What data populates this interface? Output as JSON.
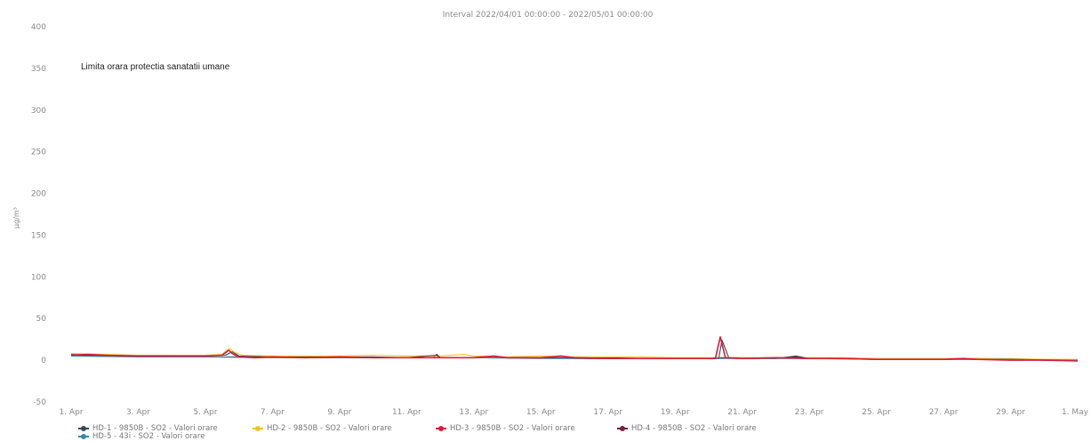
{
  "chart_data": {
    "type": "line",
    "title": "Interval 2022/04/01 00:00:00 - 2022/05/01 00:00:00",
    "ylabel": "µg/m³",
    "xlabel": "",
    "ylim": [
      -50,
      400
    ],
    "yticks": [
      400,
      350,
      300,
      250,
      200,
      150,
      100,
      50,
      0,
      -50
    ],
    "xlim": [
      1,
      31
    ],
    "xticks": [
      {
        "x": 1,
        "label": "1. Apr"
      },
      {
        "x": 3,
        "label": "3. Apr"
      },
      {
        "x": 5,
        "label": "5. Apr"
      },
      {
        "x": 7,
        "label": "7. Apr"
      },
      {
        "x": 9,
        "label": "9. Apr"
      },
      {
        "x": 11,
        "label": "11. Apr"
      },
      {
        "x": 13,
        "label": "13. Apr"
      },
      {
        "x": 15,
        "label": "15. Apr"
      },
      {
        "x": 17,
        "label": "17. Apr"
      },
      {
        "x": 19,
        "label": "19. Apr"
      },
      {
        "x": 21,
        "label": "21. Apr"
      },
      {
        "x": 23,
        "label": "23. Apr"
      },
      {
        "x": 25,
        "label": "25. Apr"
      },
      {
        "x": 27,
        "label": "27. Apr"
      },
      {
        "x": 29,
        "label": "29. Apr"
      },
      {
        "x": 31,
        "label": "1. May"
      }
    ],
    "annotation": "Limita orara protectia sanatatii umane",
    "grid": false,
    "legend_position": "bottom",
    "series": [
      {
        "name": "HD-1 - 9850B - SO2 - Valori orare",
        "color": "#34495e",
        "x": [
          1,
          2,
          3,
          4,
          5,
          5.6,
          5.8,
          6,
          7,
          8,
          9,
          10,
          11,
          11.8,
          11.9,
          12,
          13,
          14,
          15,
          16,
          17,
          18,
          19,
          20,
          20.3,
          20.4,
          20.6,
          21,
          22,
          22.6,
          23,
          24,
          25,
          26,
          27,
          28,
          29,
          30,
          31
        ],
        "y": [
          7,
          6,
          6,
          5,
          5,
          6,
          10,
          5,
          4,
          4,
          4,
          4,
          3,
          3,
          7,
          3,
          3,
          3,
          3,
          3,
          3,
          2,
          2,
          2,
          2,
          24,
          3,
          3,
          2,
          5,
          2,
          2,
          1,
          1,
          1,
          2,
          1,
          0,
          0
        ]
      },
      {
        "name": "HD-2 - 9850B - SO2 - Valori orare",
        "color": "#f2c41c",
        "x": [
          1,
          2,
          3,
          4,
          5,
          5.5,
          5.7,
          5.9,
          6.1,
          7,
          8,
          9,
          10,
          11,
          12,
          12.7,
          13,
          14,
          15,
          16,
          17,
          18,
          19,
          20,
          21,
          22,
          23,
          24,
          25,
          26,
          27,
          28,
          29,
          30,
          31
        ],
        "y": [
          8,
          7,
          6,
          6,
          6,
          7,
          14,
          9,
          6,
          5,
          5,
          5,
          6,
          5,
          5,
          7,
          5,
          4,
          5,
          4,
          4,
          4,
          3,
          3,
          3,
          3,
          3,
          3,
          2,
          2,
          2,
          2,
          2,
          1,
          1
        ]
      },
      {
        "name": "HD-3 - 9850B - SO2 - Valori orare",
        "color": "#d81b3c",
        "x": [
          1,
          1.5,
          2,
          3,
          4,
          5,
          5.5,
          5.7,
          5.8,
          6,
          6.5,
          7,
          8,
          9,
          10,
          11,
          12,
          13,
          13.6,
          14,
          15,
          15.6,
          16,
          17,
          18,
          19,
          20,
          20.2,
          20.35,
          20.5,
          21,
          22,
          23,
          24,
          25,
          26,
          27,
          27.6,
          28,
          29,
          30,
          31
        ],
        "y": [
          6,
          7,
          6,
          5,
          5,
          5,
          6,
          12,
          8,
          4,
          3,
          4,
          3,
          4,
          3,
          3,
          3,
          3,
          5,
          3,
          3,
          5,
          3,
          2,
          2,
          2,
          2,
          2,
          28,
          3,
          2,
          3,
          2,
          2,
          1,
          1,
          1,
          2,
          1,
          0,
          0,
          -1
        ]
      },
      {
        "name": "HD-4 - 9850B - SO2 - Valori orare",
        "color": "#7b1f3a",
        "x": [
          1,
          2,
          3,
          4,
          5,
          6,
          7,
          8,
          9,
          10,
          11,
          11.9,
          12,
          13,
          14,
          15,
          16,
          17,
          18,
          19,
          20,
          20.4,
          21,
          22,
          22.6,
          23,
          24,
          25,
          26,
          27,
          28,
          29,
          30,
          31
        ],
        "y": [
          6,
          5,
          5,
          5,
          4,
          4,
          4,
          3,
          3,
          3,
          3,
          6,
          3,
          3,
          3,
          3,
          2,
          2,
          2,
          2,
          2,
          3,
          2,
          2,
          4,
          2,
          2,
          1,
          1,
          1,
          1,
          1,
          0,
          0
        ]
      },
      {
        "name": "HD-5 - 43i - SO2 - Valori orare",
        "color": "#3a86a8",
        "x": [
          1,
          3,
          5,
          7,
          9,
          11,
          13,
          15,
          17,
          19,
          21,
          23,
          25,
          27,
          29,
          31
        ],
        "y": [
          5,
          4,
          4,
          3,
          3,
          3,
          3,
          2,
          2,
          2,
          2,
          2,
          1,
          1,
          1,
          0
        ]
      }
    ]
  }
}
